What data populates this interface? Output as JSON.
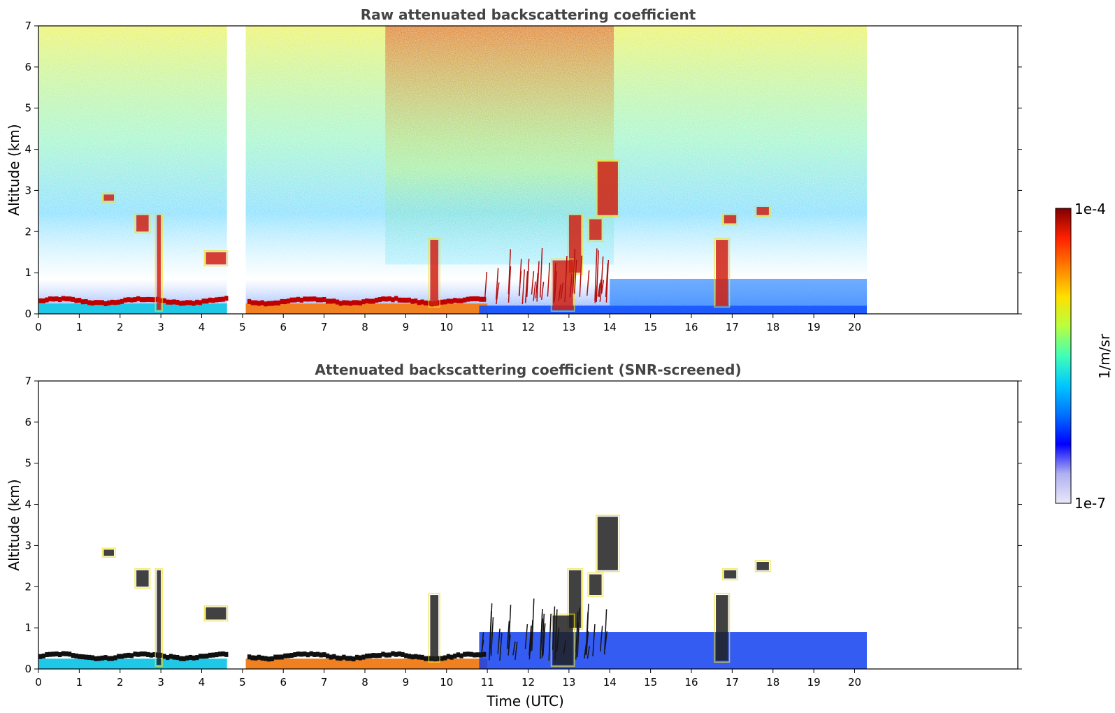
{
  "chart_data": [
    {
      "type": "heatmap",
      "title": "Raw attenuated backscattering coefficient",
      "xlabel": "",
      "ylabel": "Altitude (km)",
      "xlim": [
        0,
        24
      ],
      "ylim": [
        0,
        7
      ],
      "x_ticks": [
        0,
        1,
        2,
        3,
        4,
        5,
        6,
        7,
        8,
        9,
        10,
        11,
        12,
        13,
        14,
        15,
        16,
        17,
        18,
        19,
        20
      ],
      "y_ticks": [
        0,
        1,
        2,
        3,
        4,
        5,
        6,
        7
      ],
      "data_gaps_hours": [
        [
          4.62,
          5.08
        ],
        [
          20.3,
          24
        ]
      ],
      "features": [
        {
          "hours": [
            0,
            10.8
          ],
          "altitude_km": [
            0.15,
            0.45
          ],
          "level": "high"
        },
        {
          "hours": [
            13.0,
            14.2
          ],
          "altitude_km": [
            2.0,
            3.6
          ],
          "level": "high"
        },
        {
          "hours": [
            16.6,
            18.0
          ],
          "altitude_km": [
            2.2,
            2.6
          ],
          "level": "high"
        },
        {
          "hours": [
            14.0,
            20.3
          ],
          "altitude_km": [
            0,
            0.9
          ],
          "level": "low"
        }
      ]
    },
    {
      "type": "heatmap",
      "title": "Attenuated backscattering coefficient (SNR-screened)",
      "xlabel": "Time (UTC)",
      "ylabel": "Altitude (km)",
      "xlim": [
        0,
        24
      ],
      "ylim": [
        0,
        7
      ],
      "x_ticks": [
        0,
        1,
        2,
        3,
        4,
        5,
        6,
        7,
        8,
        9,
        10,
        11,
        12,
        13,
        14,
        15,
        16,
        17,
        18,
        19,
        20
      ],
      "y_ticks": [
        0,
        1,
        2,
        3,
        4,
        5,
        6,
        7
      ],
      "data_gaps_hours": [
        [
          4.62,
          5.08
        ],
        [
          20.3,
          24
        ]
      ]
    }
  ],
  "colorbar": {
    "max_label": "1e-4",
    "min_label": "1e-7",
    "label": "1/m/sr",
    "scale": "log",
    "range": [
      1e-07,
      0.0001
    ],
    "colormap": [
      "#e8e8f8",
      "#b0b0f0",
      "#0000ff",
      "#0070ff",
      "#00c8ff",
      "#40ffb8",
      "#b8ff40",
      "#ffe000",
      "#ff8000",
      "#ff2000",
      "#800000"
    ]
  }
}
